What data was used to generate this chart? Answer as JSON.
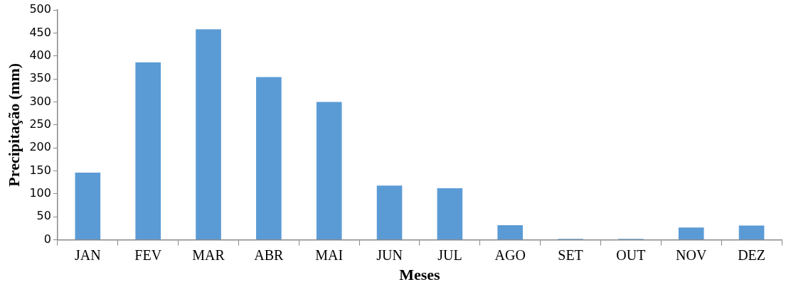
{
  "chart_data": {
    "type": "bar",
    "xlabel": "Meses",
    "ylabel": "Precipitação (mm)",
    "categories": [
      "JAN",
      "FEV",
      "MAR",
      "ABR",
      "MAI",
      "JUN",
      "JUL",
      "AGO",
      "SET",
      "OUT",
      "NOV",
      "DEZ"
    ],
    "values": [
      146,
      386,
      458,
      354,
      300,
      118,
      112,
      32,
      2,
      2,
      27,
      31
    ],
    "color": "#5b9bd5",
    "ylim": [
      0,
      500
    ],
    "yticks": [
      0,
      50,
      100,
      150,
      200,
      250,
      300,
      350,
      400,
      450,
      500
    ],
    "grid": false,
    "legend": false
  }
}
